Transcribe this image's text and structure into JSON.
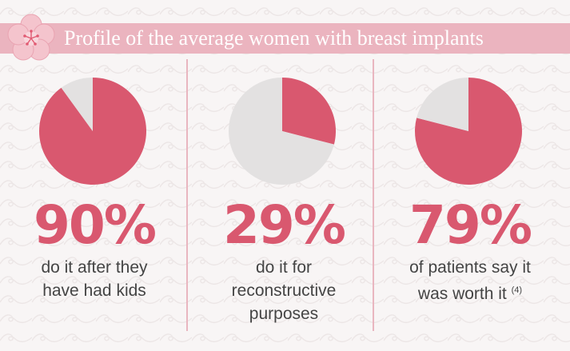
{
  "header": {
    "title": "Profile of the average women with breast implants"
  },
  "colors": {
    "accent": "#d9586f",
    "pie_rest": "#e3e1e1",
    "title_band": "#ebb4bf",
    "divider": "#e9b6c0"
  },
  "chart_data": [
    {
      "type": "pie",
      "values": [
        90,
        10
      ],
      "value_label": "90%",
      "caption_lines": [
        "do it after they",
        "have had kids"
      ]
    },
    {
      "type": "pie",
      "values": [
        29,
        71
      ],
      "value_label": "29%",
      "caption_lines": [
        "do it for",
        "reconstructive",
        "purposes"
      ]
    },
    {
      "type": "pie",
      "values": [
        79,
        21
      ],
      "value_label": "79%",
      "caption_lines": [
        "of patients say it",
        "was worth it"
      ],
      "footnote": "(4)"
    }
  ]
}
